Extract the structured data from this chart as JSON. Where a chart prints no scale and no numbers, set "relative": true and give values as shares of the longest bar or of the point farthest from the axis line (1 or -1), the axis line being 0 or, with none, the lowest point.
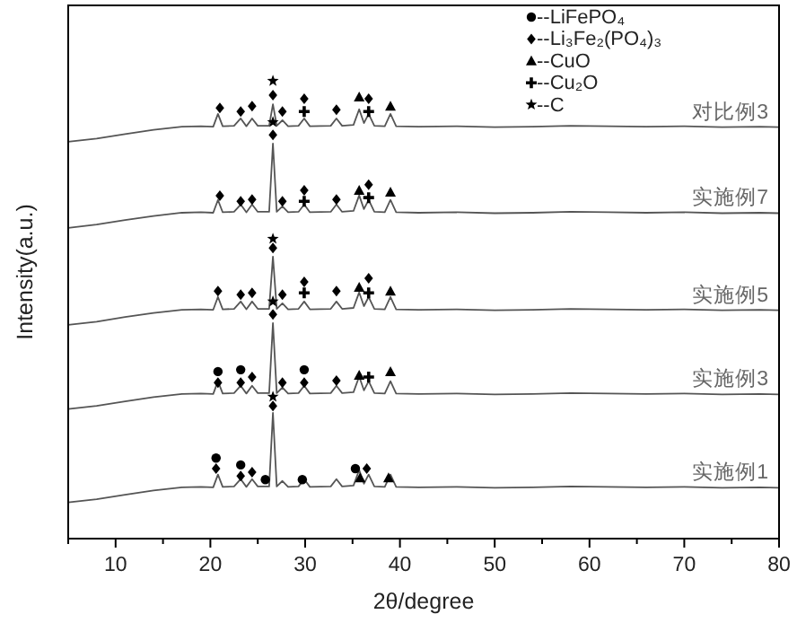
{
  "chart_data": {
    "type": "line",
    "xlabel": "2θ/degree",
    "ylabel": "Intensity(a.u.)",
    "relative": true,
    "xlim": [
      5,
      80
    ],
    "xticks": [
      {
        "value": 5,
        "label": null
      },
      10,
      {
        "value": 15,
        "label": null
      },
      20,
      {
        "value": 25,
        "label": null
      },
      30,
      {
        "value": 35,
        "label": null
      },
      40,
      {
        "value": 45,
        "label": null
      },
      50,
      {
        "value": 55,
        "label": null
      },
      60,
      {
        "value": 65,
        "label": null
      },
      70,
      {
        "value": 75,
        "label": null
      },
      80
    ],
    "tick_labels": "x",
    "grid": false,
    "legend": "top",
    "line_style": "solid",
    "x": [
      5,
      8,
      11,
      14,
      17,
      19,
      20.3,
      20.8,
      21.3,
      22.5,
      23.2,
      23.8,
      24.4,
      25.0,
      26.2,
      26.6,
      27.0,
      27.6,
      28.2,
      29.3,
      29.9,
      30.5,
      32.7,
      33.3,
      33.9,
      35.1,
      35.7,
      36.2,
      36.7,
      37.3,
      38.4,
      39.0,
      39.6,
      42,
      46,
      50,
      54,
      58,
      62,
      66,
      70,
      74,
      78,
      80
    ],
    "series": [
      {
        "name": "对比例3",
        "color": "#555555",
        "values": [
          0.867,
          0.874,
          0.884,
          0.893,
          0.9,
          0.901,
          0.9,
          0.928,
          0.901,
          0.902,
          0.918,
          0.901,
          0.918,
          0.902,
          0.902,
          0.949,
          0.902,
          0.914,
          0.901,
          0.902,
          0.918,
          0.901,
          0.902,
          0.918,
          0.902,
          0.904,
          0.938,
          0.908,
          0.928,
          0.902,
          0.901,
          0.928,
          0.901,
          0.9,
          0.901,
          0.899,
          0.9,
          0.902,
          0.901,
          0.9,
          0.901,
          0.899,
          0.9,
          0.899
        ]
      },
      {
        "name": "实施例7",
        "color": "#555555",
        "values": [
          0.679,
          0.686,
          0.696,
          0.705,
          0.712,
          0.713,
          0.712,
          0.74,
          0.713,
          0.714,
          0.73,
          0.713,
          0.73,
          0.714,
          0.714,
          0.863,
          0.714,
          0.726,
          0.713,
          0.714,
          0.73,
          0.713,
          0.714,
          0.73,
          0.714,
          0.716,
          0.75,
          0.72,
          0.74,
          0.714,
          0.713,
          0.74,
          0.713,
          0.712,
          0.713,
          0.711,
          0.712,
          0.714,
          0.713,
          0.712,
          0.713,
          0.711,
          0.712,
          0.711
        ]
      },
      {
        "name": "实施例5",
        "color": "#555555",
        "values": [
          0.467,
          0.474,
          0.484,
          0.493,
          0.5,
          0.501,
          0.5,
          0.528,
          0.501,
          0.502,
          0.518,
          0.501,
          0.518,
          0.502,
          0.502,
          0.616,
          0.502,
          0.514,
          0.501,
          0.502,
          0.518,
          0.501,
          0.502,
          0.518,
          0.502,
          0.504,
          0.538,
          0.508,
          0.528,
          0.502,
          0.501,
          0.528,
          0.501,
          0.5,
          0.501,
          0.499,
          0.5,
          0.502,
          0.501,
          0.5,
          0.501,
          0.499,
          0.5,
          0.499
        ]
      },
      {
        "name": "实施例3",
        "color": "#555555",
        "values": [
          0.283,
          0.29,
          0.3,
          0.309,
          0.316,
          0.317,
          0.316,
          0.344,
          0.317,
          0.318,
          0.334,
          0.317,
          0.334,
          0.318,
          0.318,
          0.471,
          0.318,
          0.33,
          0.317,
          0.318,
          0.334,
          0.317,
          0.318,
          0.334,
          0.318,
          0.32,
          0.354,
          0.324,
          0.344,
          0.318,
          0.317,
          0.344,
          0.317,
          0.316,
          0.317,
          0.315,
          0.316,
          0.318,
          0.317,
          0.316,
          0.317,
          0.315,
          0.316,
          0.315
        ]
      },
      {
        "name": "实施例1",
        "color": "#555555",
        "values": [
          0.079,
          0.086,
          0.096,
          0.105,
          0.112,
          0.113,
          0.112,
          0.14,
          0.113,
          0.114,
          0.13,
          0.113,
          0.13,
          0.114,
          0.114,
          0.275,
          0.114,
          0.126,
          0.113,
          0.114,
          0.13,
          0.113,
          0.114,
          0.13,
          0.114,
          0.116,
          0.15,
          0.12,
          0.14,
          0.114,
          0.113,
          0.14,
          0.113,
          0.112,
          0.113,
          0.111,
          0.112,
          0.114,
          0.113,
          0.112,
          0.113,
          0.111,
          0.112,
          0.111
        ]
      },
      {
        "name": "--LiFePO₄",
        "type": "scatter",
        "marker": "circle",
        "color": "#000000",
        "x": [
          20.8,
          23.2,
          29.9,
          20.6,
          23.2,
          25.8,
          29.7,
          35.3
        ],
        "values": [
          0.365,
          0.369,
          0.369,
          0.176,
          0.161,
          0.129,
          0.129,
          0.153
        ]
      },
      {
        "name": "--Li₃Fe₂(PO₄)₃",
        "type": "scatter",
        "marker": "diamond",
        "color": "#000000",
        "x": [
          21.0,
          23.2,
          24.4,
          26.6,
          27.6,
          29.9,
          33.3,
          36.7,
          21.0,
          23.2,
          24.4,
          26.6,
          27.6,
          29.9,
          33.3,
          36.7,
          20.8,
          23.2,
          24.4,
          26.6,
          27.6,
          29.9,
          33.3,
          36.7,
          20.8,
          23.2,
          24.4,
          26.6,
          27.6,
          29.9,
          33.3,
          20.6,
          23.2,
          24.4,
          26.6,
          36.5
        ],
        "values": [
          0.941,
          0.933,
          0.945,
          0.969,
          0.933,
          0.961,
          0.937,
          0.961,
          0.749,
          0.737,
          0.741,
          0.882,
          0.737,
          0.761,
          0.741,
          0.773,
          0.541,
          0.533,
          0.537,
          0.635,
          0.533,
          0.561,
          0.541,
          0.569,
          0.341,
          0.341,
          0.353,
          0.49,
          0.341,
          0.341,
          0.345,
          0.153,
          0.137,
          0.145,
          0.29,
          0.153
        ]
      },
      {
        "name": "--CuO",
        "type": "scatter",
        "marker": "triangle",
        "color": "#000000",
        "x": [
          35.7,
          39.0,
          35.7,
          39.0,
          35.7,
          39.0,
          35.7,
          39.0,
          35.8,
          38.8
        ],
        "values": [
          0.965,
          0.945,
          0.761,
          0.757,
          0.549,
          0.541,
          0.357,
          0.365,
          0.133,
          0.133
        ]
      },
      {
        "name": "--Cu₂O",
        "type": "scatter",
        "marker": "cross",
        "color": "#000000",
        "x": [
          29.9,
          36.7,
          29.9,
          36.7,
          29.9,
          36.7,
          36.7
        ],
        "values": [
          0.933,
          0.933,
          0.737,
          0.745,
          0.537,
          0.537,
          0.353
        ]
      },
      {
        "name": "--C",
        "type": "scatter",
        "marker": "star",
        "color": "#000000",
        "x": [
          26.6,
          26.6,
          26.6,
          26.6,
          26.6
        ],
        "values": [
          1.0,
          0.91,
          0.655,
          0.518,
          0.31
        ]
      }
    ]
  }
}
